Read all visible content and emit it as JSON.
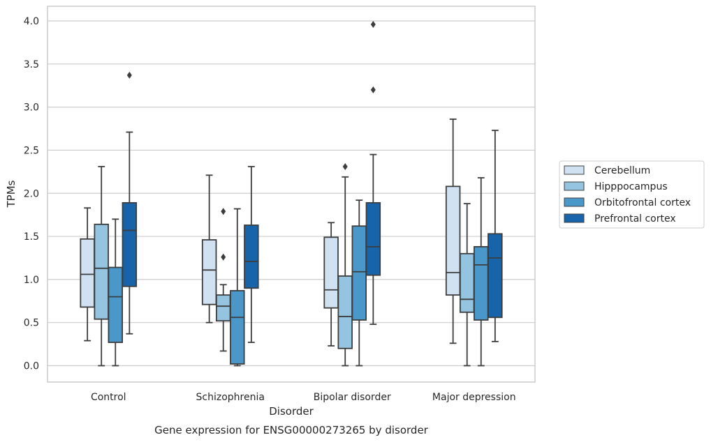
{
  "chart_data": {
    "type": "box",
    "title": "",
    "caption": "Gene expression for ENSG00000273265 by disorder",
    "xlabel": "Disorder",
    "ylabel": "TPMs",
    "ylim": [
      -0.19,
      4.17
    ],
    "yticks": [
      "0.0",
      "0.5",
      "1.0",
      "1.5",
      "2.0",
      "2.5",
      "3.0",
      "3.5",
      "4.0"
    ],
    "grid": "horizontal",
    "legend_position": "right",
    "categories": [
      "Control",
      "Schizophrenia",
      "Bipolar disorder",
      "Major depression"
    ],
    "series": [
      {
        "name": "Cerebellum",
        "color": "#d0e1f2",
        "boxes": [
          {
            "whisker_low": 0.29,
            "q1": 0.68,
            "median": 1.06,
            "q3": 1.47,
            "whisker_high": 1.83,
            "outliers": []
          },
          {
            "whisker_low": 0.5,
            "q1": 0.71,
            "median": 1.11,
            "q3": 1.46,
            "whisker_high": 2.21,
            "outliers": []
          },
          {
            "whisker_low": 0.23,
            "q1": 0.67,
            "median": 0.88,
            "q3": 1.49,
            "whisker_high": 1.66,
            "outliers": []
          },
          {
            "whisker_low": 0.26,
            "q1": 0.82,
            "median": 1.08,
            "q3": 2.08,
            "whisker_high": 2.86,
            "outliers": []
          }
        ]
      },
      {
        "name": "Hipppocampus",
        "color": "#94c4df",
        "boxes": [
          {
            "whisker_low": 0.0,
            "q1": 0.54,
            "median": 1.13,
            "q3": 1.64,
            "whisker_high": 2.31,
            "outliers": []
          },
          {
            "whisker_low": 0.17,
            "q1": 0.52,
            "median": 0.69,
            "q3": 0.82,
            "whisker_high": 0.94,
            "outliers": [
              1.79,
              1.26
            ]
          },
          {
            "whisker_low": 0.0,
            "q1": 0.2,
            "median": 0.57,
            "q3": 1.04,
            "whisker_high": 2.19,
            "outliers": [
              2.31
            ]
          },
          {
            "whisker_low": 0.0,
            "q1": 0.62,
            "median": 0.77,
            "q3": 1.3,
            "whisker_high": 1.88,
            "outliers": []
          }
        ]
      },
      {
        "name": "Orbitofrontal cortex",
        "color": "#4a98c9",
        "boxes": [
          {
            "whisker_low": 0.0,
            "q1": 0.27,
            "median": 0.8,
            "q3": 1.14,
            "whisker_high": 1.7,
            "outliers": []
          },
          {
            "whisker_low": 0.0,
            "q1": 0.02,
            "median": 0.56,
            "q3": 0.87,
            "whisker_high": 1.82,
            "outliers": []
          },
          {
            "whisker_low": 0.0,
            "q1": 0.53,
            "median": 1.09,
            "q3": 1.62,
            "whisker_high": 1.92,
            "outliers": []
          },
          {
            "whisker_low": 0.0,
            "q1": 0.53,
            "median": 1.17,
            "q3": 1.38,
            "whisker_high": 2.18,
            "outliers": []
          }
        ]
      },
      {
        "name": "Prefrontal cortex",
        "color": "#1764ab",
        "boxes": [
          {
            "whisker_low": 0.37,
            "q1": 0.92,
            "median": 1.57,
            "q3": 1.89,
            "whisker_high": 2.71,
            "outliers": [
              3.37
            ]
          },
          {
            "whisker_low": 0.27,
            "q1": 0.9,
            "median": 1.21,
            "q3": 1.63,
            "whisker_high": 2.31,
            "outliers": []
          },
          {
            "whisker_low": 0.48,
            "q1": 1.05,
            "median": 1.38,
            "q3": 1.89,
            "whisker_high": 2.45,
            "outliers": [
              3.96,
              3.2
            ]
          },
          {
            "whisker_low": 0.28,
            "q1": 0.56,
            "median": 1.25,
            "q3": 1.53,
            "whisker_high": 2.73,
            "outliers": []
          }
        ]
      }
    ]
  }
}
